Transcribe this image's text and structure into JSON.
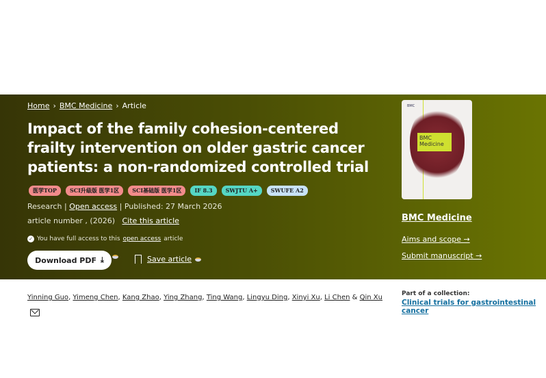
{
  "breadcrumb": {
    "items": [
      "Home",
      "BMC Medicine",
      "Article"
    ]
  },
  "title": "Impact of the family cohesion-centered frailty intervention on older gastric cancer patients: a non-randomized controlled trial",
  "badges": [
    {
      "label": "医学TOP",
      "color": "#f28b8b"
    },
    {
      "label": "SCI升级版 医学1区",
      "color": "#f28b8b"
    },
    {
      "label": "SCI基础版 医学1区",
      "color": "#f28b8b"
    },
    {
      "label": "IF 8.3",
      "color": "#55d6c4"
    },
    {
      "label": "SWJTU A+",
      "color": "#55d6c4"
    },
    {
      "label": "SWUFE A2",
      "color": "#c8e2f7"
    }
  ],
  "meta": {
    "type": "Research",
    "sep": "|",
    "open_access": "Open access",
    "published": "Published: 27 March 2026",
    "article_number": "article number , (2026)",
    "cite": "Cite this article"
  },
  "access": {
    "prefix": "You have full access to this",
    "link": "open access",
    "suffix": "article"
  },
  "actions": {
    "download": "Download PDF",
    "save": "Save article"
  },
  "journal": {
    "cover_title": "BMC Medicine",
    "cover_logo": "BMC",
    "name": "BMC Medicine",
    "aims": "Aims and scope →",
    "submit": "Submit manuscript →"
  },
  "authors": [
    "Yinning Guo",
    "Yimeng Chen",
    "Kang Zhao",
    "Ying Zhang",
    "Ting Wang",
    "Lingyu Ding",
    "Xinyi Xu",
    "Li Chen",
    "Qin Xu"
  ],
  "collection": {
    "label": "Part of a collection:",
    "link": "Clinical trials for gastrointestinal cancer"
  },
  "colors": {
    "banner_dark": "#363506",
    "banner_light": "#6a7402",
    "link": "#1570a0"
  }
}
